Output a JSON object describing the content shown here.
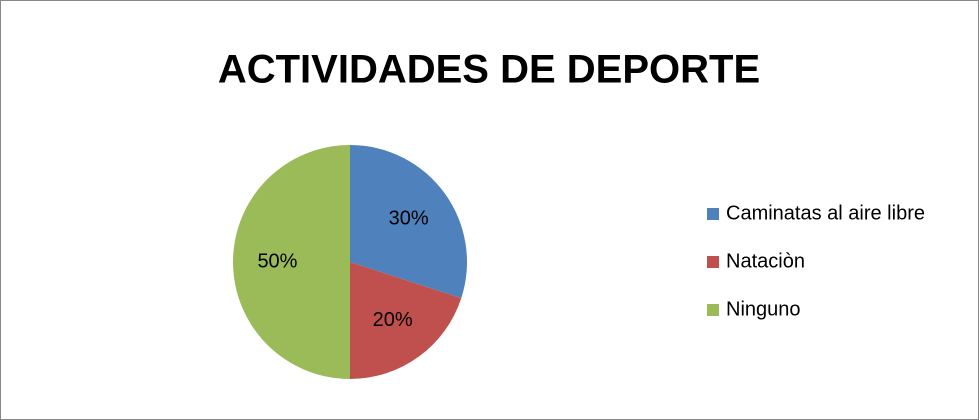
{
  "chart_data": {
    "type": "pie",
    "title": "ACTIVIDADES DE DEPORTE",
    "categories": [
      "Caminatas al aire libre",
      "Nataciòn",
      "Ninguno"
    ],
    "values": [
      30,
      20,
      50
    ],
    "value_labels": [
      "30%",
      "20%",
      "50%"
    ],
    "colors": [
      "#4f81bd",
      "#c0504d",
      "#9bbb59"
    ],
    "legend": "right"
  }
}
